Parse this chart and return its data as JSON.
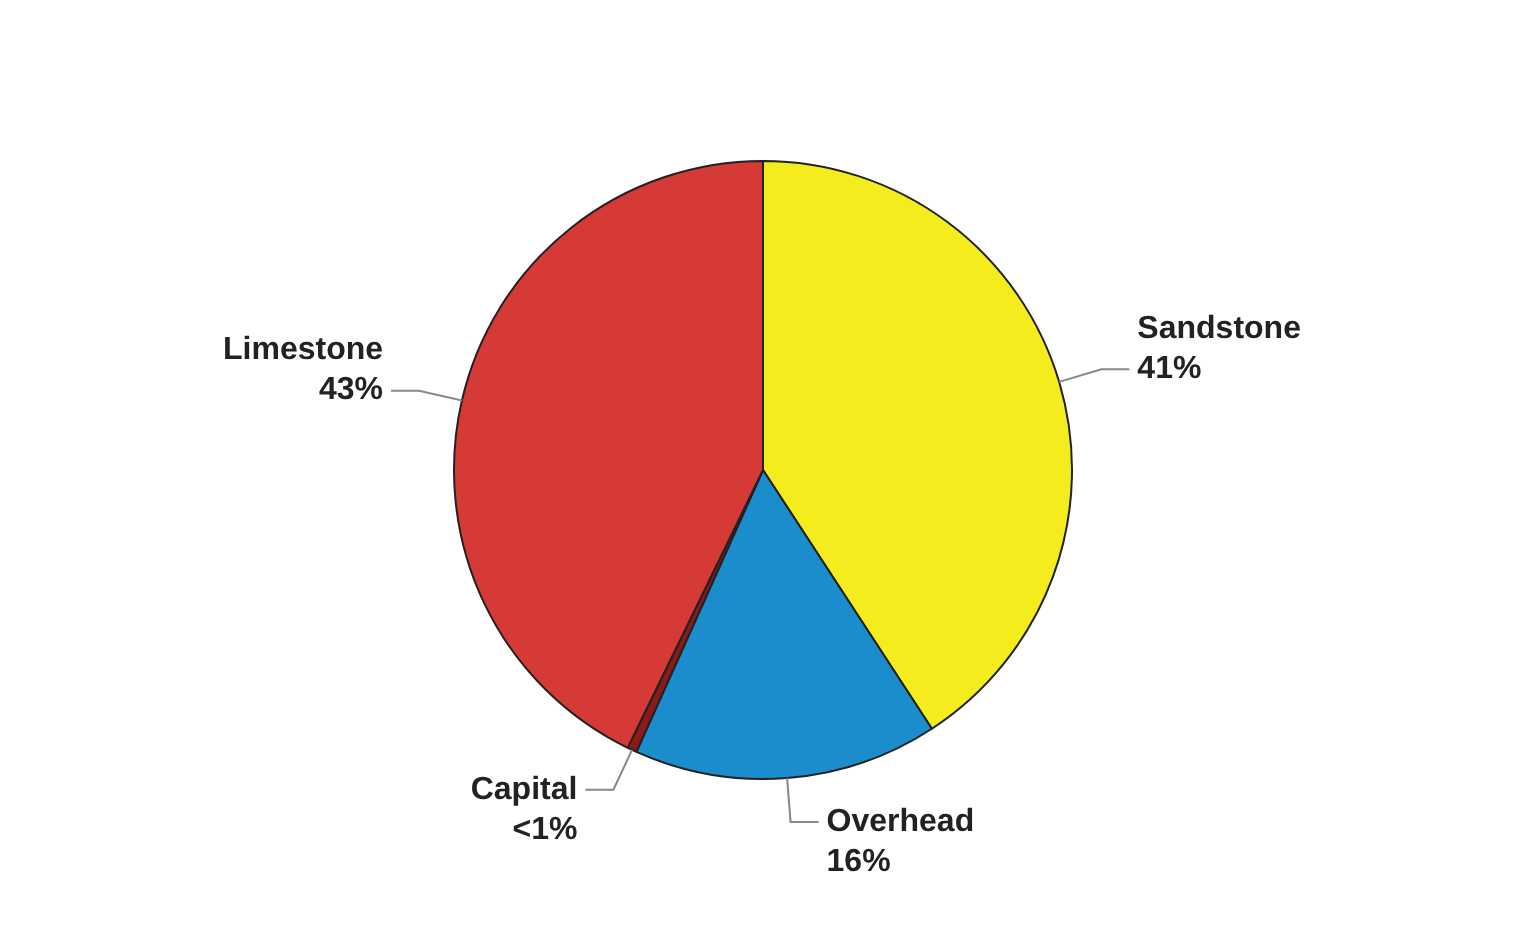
{
  "chart_data": {
    "type": "pie",
    "categories": [
      "Sandstone",
      "Overhead",
      "Capital",
      "Limestone"
    ],
    "values": [
      41,
      16,
      0.5,
      43
    ],
    "value_labels": [
      "41%",
      "16%",
      "<1%",
      "43%"
    ],
    "colors": [
      "#f5ec1e",
      "#1b8ccc",
      "#8b1a1a",
      "#d63a36"
    ],
    "legend": false
  }
}
